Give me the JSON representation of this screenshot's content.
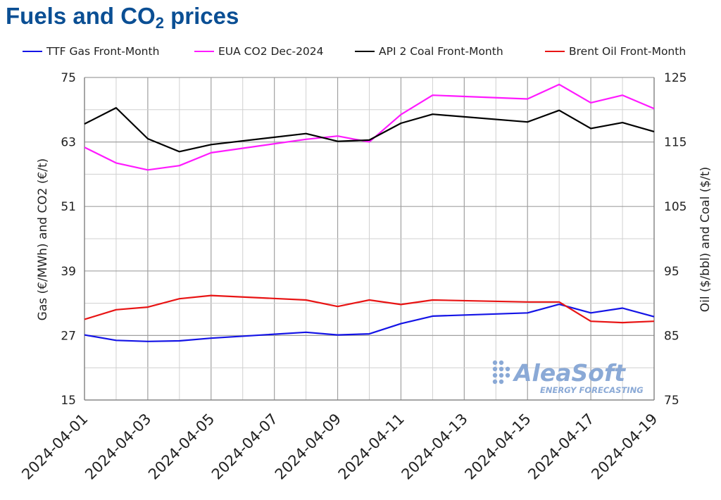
{
  "title_main": "Fuels and CO",
  "title_sub": "2",
  "title_tail": " prices",
  "colors": {
    "gas": "#1414e6",
    "eua": "#ff1aff",
    "coal": "#000000",
    "brent": "#e81414",
    "grid": "#d0d0d0",
    "axis": "#808080",
    "logo": "#8aa9d6"
  },
  "logo": {
    "name": "AleaSoft",
    "tagline": "ENERGY FORECASTING"
  },
  "chart_data": {
    "type": "line",
    "title": "Fuels and CO2 prices",
    "x": [
      "2024-04-01",
      "2024-04-02",
      "2024-04-03",
      "2024-04-04",
      "2024-04-05",
      "2024-04-08",
      "2024-04-09",
      "2024-04-10",
      "2024-04-11",
      "2024-04-12",
      "2024-04-15",
      "2024-04-16",
      "2024-04-17",
      "2024-04-18",
      "2024-04-19"
    ],
    "xticks": [
      "2024-04-01",
      "2024-04-03",
      "2024-04-05",
      "2024-04-07",
      "2024-04-09",
      "2024-04-11",
      "2024-04-13",
      "2024-04-15",
      "2024-04-17",
      "2024-04-19"
    ],
    "ylabel_left": "Gas (€/MWh) and CO2 (€/t)",
    "ylabel_right": "Oil ($/bbl) and Coal ($/t)",
    "ylim_left": [
      15,
      75
    ],
    "ylim_right": [
      75,
      125
    ],
    "yticks_left": [
      15,
      27,
      39,
      51,
      63,
      75
    ],
    "yticks_right": [
      75,
      85,
      95,
      105,
      115,
      125
    ],
    "grid": true,
    "legend": "top",
    "series": [
      {
        "name": "TTF Gas Front-Month",
        "axis": "left",
        "color_key": "gas",
        "values": [
          27.1,
          26.1,
          25.9,
          26.0,
          26.5,
          27.6,
          27.1,
          27.3,
          29.2,
          30.6,
          31.2,
          32.8,
          31.2,
          32.1,
          30.5
        ]
      },
      {
        "name": "EUA CO2 Dec-2024",
        "axis": "left",
        "color_key": "eua",
        "values": [
          62.0,
          59.1,
          57.8,
          58.6,
          61.0,
          63.5,
          64.1,
          63.0,
          68.1,
          71.7,
          71.0,
          73.7,
          70.3,
          71.7,
          69.2
        ]
      },
      {
        "name": "API 2 Coal Front-Month",
        "axis": "right",
        "color_key": "coal",
        "values": [
          117.8,
          120.3,
          115.5,
          113.5,
          114.6,
          116.3,
          115.1,
          115.3,
          117.9,
          119.3,
          118.1,
          119.9,
          117.1,
          118.0,
          116.6
        ]
      },
      {
        "name": "Brent Oil Front-Month",
        "axis": "right",
        "color_key": "brent",
        "values": [
          87.5,
          89.0,
          89.4,
          90.7,
          91.2,
          90.5,
          89.5,
          90.5,
          89.8,
          90.5,
          90.2,
          90.2,
          87.2,
          87.0,
          87.2
        ]
      }
    ]
  }
}
